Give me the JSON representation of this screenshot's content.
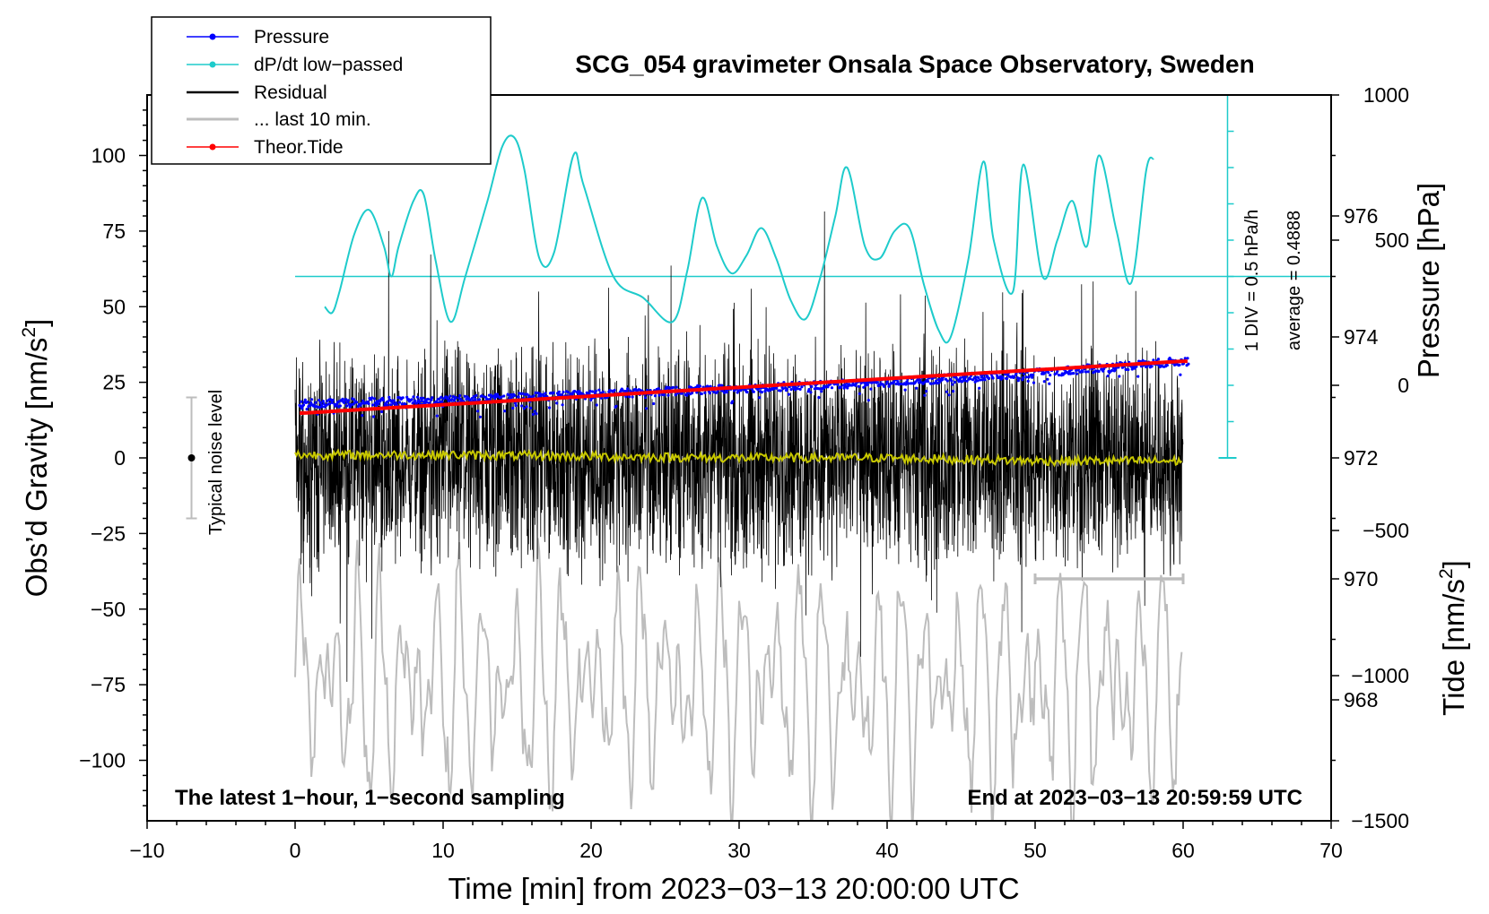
{
  "chart_data": {
    "type": "line",
    "title": "SCG_054 gravimeter Onsala Space Observatory, Sweden",
    "xlabel": "Time [min] from 2023−03−13 20:00:00 UTC",
    "ylabel": "Obs’d Gravity [nm/s",
    "ylabel_sup": "2",
    "ylabel_close": "]",
    "ylabel_right_top": "Pressure [hPa]",
    "ylabel_right_bottom": "Tide [nm/s",
    "ylabel_right_bottom_sup": "2",
    "ylabel_right_bottom_close": "]",
    "xlim": [
      -10,
      70
    ],
    "ylim": [
      -120,
      120
    ],
    "x_ticks": [
      -10,
      0,
      10,
      20,
      30,
      40,
      50,
      60,
      70
    ],
    "x_tick_labels": [
      "−10",
      "0",
      "10",
      "20",
      "30",
      "40",
      "50",
      "60",
      "70"
    ],
    "y_ticks": [
      -100,
      -75,
      -50,
      -25,
      0,
      25,
      50,
      75,
      100
    ],
    "y_tick_labels": [
      "−100",
      "−75",
      "−50",
      "−25",
      "0",
      "25",
      "50",
      "75",
      "100"
    ],
    "pressure_axis": {
      "range_hpa": [
        966,
        978
      ],
      "ticks": [
        968,
        970,
        972,
        974,
        976
      ],
      "tick_labels": [
        "968",
        "970",
        "972",
        "974",
        "976"
      ]
    },
    "tide_axis": {
      "range": [
        -1500,
        1000
      ],
      "ticks": [
        -1500,
        -1000,
        -500,
        0,
        500,
        1000
      ],
      "tick_labels": [
        "−1500",
        "−1000",
        "−500",
        "0",
        "500",
        "1000"
      ]
    },
    "legend": [
      {
        "label": "Pressure",
        "color": "#0000ff",
        "marker": "dot"
      },
      {
        "label": "dP/dt low−passed",
        "color": "#1ecbcb",
        "marker": "dot"
      },
      {
        "label": "Residual",
        "color": "#000000",
        "marker": "none"
      },
      {
        "label": "... last 10 min.",
        "color": "#bdbdbd",
        "marker": "none"
      },
      {
        "label": "Theor.Tide",
        "color": "#ff0000",
        "marker": "dot"
      }
    ],
    "annotations": {
      "noise": "Typical noise level",
      "dpdt_scale": "1 DIV = 0.5 hPa/h",
      "dpdt_average": "average = 0.4888",
      "bottom_left": "The latest 1−hour, 1−second sampling",
      "bottom_right": "End at 2023−03−13 20:59:59 UTC"
    },
    "series": [
      {
        "name": "Pressure",
        "axis": "pressure_hpa",
        "x": [
          0,
          10,
          20,
          30,
          40,
          50,
          60
        ],
        "values": [
          972.9,
          972.95,
          973.05,
          973.15,
          973.25,
          973.4,
          973.6
        ]
      },
      {
        "name": "dP/dt low−passed",
        "axis": "gravity",
        "x": [
          2,
          2.5,
          3,
          4,
          5,
          6,
          6.5,
          7,
          8,
          8.7,
          9.5,
          10.5,
          11.5,
          13,
          14,
          14.8,
          15.5,
          16.5,
          17.5,
          18.8,
          19.5,
          21.5,
          23.5,
          25.5,
          26.5,
          27.5,
          28.5,
          29.5,
          30.5,
          31.5,
          32.5,
          33.5,
          34.5,
          35.5,
          36.5,
          37.3,
          38.5,
          39.5,
          40.5,
          41.5,
          42.5,
          43.5,
          44.3,
          45.5,
          46.5,
          47.2,
          48.5,
          49.2,
          50.5,
          51.5,
          52.5,
          53.5,
          54.3,
          55.5,
          56.5,
          57.5,
          58
        ],
        "values": [
          50,
          48,
          55,
          74,
          82,
          70,
          60,
          70,
          85,
          87,
          65,
          45,
          60,
          85,
          103,
          106,
          95,
          66,
          68,
          100,
          90,
          60,
          53,
          45,
          62,
          86,
          70,
          61,
          67,
          76,
          66,
          52,
          46,
          60,
          80,
          96,
          70,
          66,
          75,
          76,
          57,
          42,
          40,
          66,
          98,
          72,
          55,
          97,
          60,
          72,
          85,
          70,
          100,
          75,
          58,
          95,
          99
        ]
      },
      {
        "name": "Residual",
        "axis": "gravity",
        "x": [
          0,
          10,
          20,
          30,
          40,
          50,
          60
        ],
        "values": [
          0,
          0,
          0,
          0,
          0,
          0,
          0
        ]
      },
      {
        "name": "Residual low−passed",
        "axis": "gravity",
        "x": [
          0,
          10,
          20,
          30,
          40,
          50,
          60
        ],
        "values": [
          1,
          1,
          0.5,
          0,
          0,
          -1,
          -1
        ]
      },
      {
        "name": "... last 10 min.",
        "axis": "gravity",
        "x": [
          0,
          10,
          20,
          30,
          40,
          50,
          60
        ],
        "values": [
          -75,
          -75,
          -75,
          -75,
          -75,
          -75,
          -75
        ]
      },
      {
        "name": "Theor.Tide",
        "axis": "tide",
        "x": [
          0,
          10,
          20,
          30,
          40,
          50,
          60
        ],
        "values": [
          -97,
          -67,
          -37,
          -7,
          23,
          53,
          83
        ]
      }
    ]
  }
}
